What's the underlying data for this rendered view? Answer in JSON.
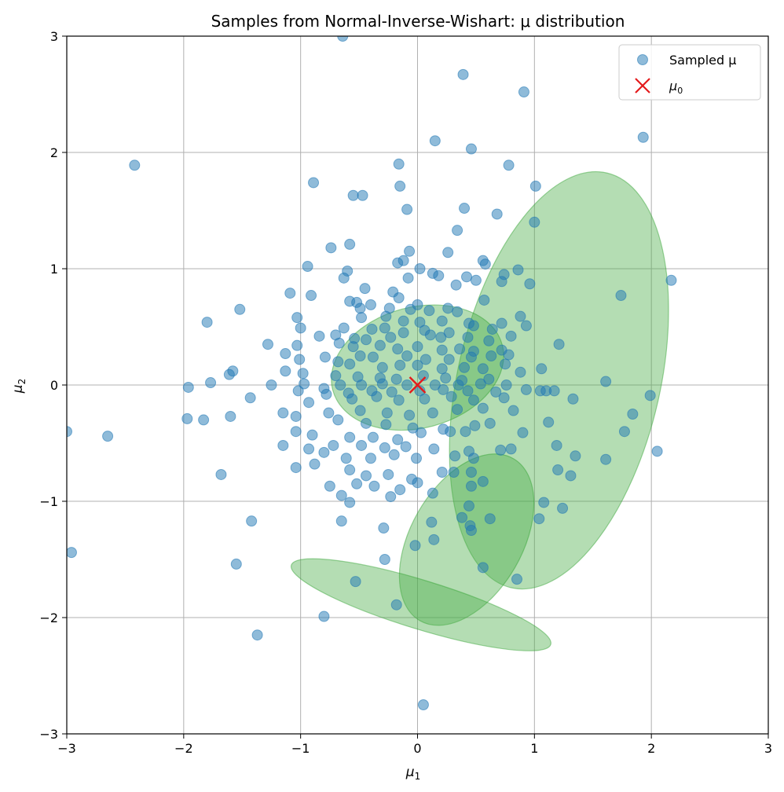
{
  "chart_data": {
    "type": "scatter",
    "title": "Samples from Normal-Inverse-Wishart: μ distribution",
    "xlabel": "μ",
    "xlabel_sub": "1",
    "ylabel": "μ",
    "ylabel_sub": "2",
    "xlim": [
      -3,
      3
    ],
    "ylim": [
      -3,
      3
    ],
    "xticks": [
      -3,
      -2,
      -1,
      0,
      1,
      2,
      3
    ],
    "yticks": [
      -3,
      -2,
      -1,
      0,
      1,
      2,
      3
    ],
    "xtick_labels": [
      "−3",
      "−2",
      "−1",
      "0",
      "1",
      "2",
      "3"
    ],
    "ytick_labels": [
      "−3",
      "−2",
      "−1",
      "0",
      "1",
      "2",
      "3"
    ],
    "grid": true,
    "legend_position": "top-right",
    "colors": {
      "points": "#1f77b4",
      "mu0": "#e41a1c",
      "ellipse_fill": "#4daf4a",
      "ellipse_edge": "#2ca02c",
      "grid": "#b0b0b0"
    },
    "series": [
      {
        "name": "Sampled μ",
        "kind": "scatter",
        "points": [
          [
            -0.64,
            3.0
          ],
          [
            0.39,
            2.67
          ],
          [
            0.91,
            2.52
          ],
          [
            0.15,
            2.1
          ],
          [
            0.46,
            2.03
          ],
          [
            1.93,
            2.13
          ],
          [
            -2.42,
            1.89
          ],
          [
            -0.16,
            1.9
          ],
          [
            0.78,
            1.89
          ],
          [
            -0.89,
            1.74
          ],
          [
            -0.15,
            1.71
          ],
          [
            1.01,
            1.71
          ],
          [
            -0.55,
            1.63
          ],
          [
            -0.47,
            1.63
          ],
          [
            -0.09,
            1.51
          ],
          [
            0.4,
            1.52
          ],
          [
            0.68,
            1.47
          ],
          [
            1.0,
            1.4
          ],
          [
            0.34,
            1.33
          ],
          [
            -0.58,
            1.21
          ],
          [
            -0.74,
            1.18
          ],
          [
            0.26,
            1.14
          ],
          [
            -0.07,
            1.15
          ],
          [
            -0.94,
            1.02
          ],
          [
            -0.17,
            1.05
          ],
          [
            -0.12,
            1.07
          ],
          [
            0.56,
            1.07
          ],
          [
            0.58,
            1.04
          ],
          [
            0.02,
            1.0
          ],
          [
            -0.6,
            0.98
          ],
          [
            0.13,
            0.96
          ],
          [
            0.74,
            0.95
          ],
          [
            0.86,
            0.99
          ],
          [
            -0.63,
            0.92
          ],
          [
            -0.08,
            0.92
          ],
          [
            0.18,
            0.94
          ],
          [
            0.42,
            0.93
          ],
          [
            0.5,
            0.9
          ],
          [
            0.72,
            0.89
          ],
          [
            0.96,
            0.87
          ],
          [
            2.17,
            0.9
          ],
          [
            0.33,
            0.86
          ],
          [
            1.74,
            0.77
          ],
          [
            -1.09,
            0.79
          ],
          [
            -0.91,
            0.77
          ],
          [
            -0.45,
            0.83
          ],
          [
            -0.21,
            0.8
          ],
          [
            -0.16,
            0.75
          ],
          [
            0.57,
            0.73
          ],
          [
            -0.58,
            0.72
          ],
          [
            -0.52,
            0.71
          ],
          [
            -0.4,
            0.69
          ],
          [
            -1.52,
            0.65
          ],
          [
            -0.49,
            0.66
          ],
          [
            -0.24,
            0.66
          ],
          [
            -0.06,
            0.65
          ],
          [
            0.0,
            0.69
          ],
          [
            0.1,
            0.64
          ],
          [
            0.26,
            0.66
          ],
          [
            0.34,
            0.63
          ],
          [
            -1.8,
            0.54
          ],
          [
            -1.03,
            0.58
          ],
          [
            -0.48,
            0.58
          ],
          [
            -0.27,
            0.59
          ],
          [
            -0.12,
            0.55
          ],
          [
            0.02,
            0.54
          ],
          [
            0.21,
            0.55
          ],
          [
            0.44,
            0.53
          ],
          [
            0.48,
            0.51
          ],
          [
            0.72,
            0.53
          ],
          [
            0.88,
            0.59
          ],
          [
            0.93,
            0.51
          ],
          [
            -1.0,
            0.49
          ],
          [
            -0.63,
            0.49
          ],
          [
            -0.39,
            0.48
          ],
          [
            -0.28,
            0.49
          ],
          [
            0.06,
            0.47
          ],
          [
            0.27,
            0.45
          ],
          [
            0.64,
            0.48
          ],
          [
            -0.84,
            0.42
          ],
          [
            -0.7,
            0.43
          ],
          [
            -0.54,
            0.4
          ],
          [
            -0.44,
            0.39
          ],
          [
            -0.23,
            0.41
          ],
          [
            -0.12,
            0.45
          ],
          [
            0.11,
            0.43
          ],
          [
            0.2,
            0.41
          ],
          [
            0.43,
            0.41
          ],
          [
            0.61,
            0.38
          ],
          [
            0.8,
            0.42
          ],
          [
            1.21,
            0.35
          ],
          [
            -1.28,
            0.35
          ],
          [
            -1.03,
            0.34
          ],
          [
            -0.67,
            0.36
          ],
          [
            -0.55,
            0.33
          ],
          [
            -0.32,
            0.34
          ],
          [
            -0.17,
            0.31
          ],
          [
            0.0,
            0.33
          ],
          [
            0.21,
            0.3
          ],
          [
            0.36,
            0.31
          ],
          [
            0.48,
            0.29
          ],
          [
            0.72,
            0.3
          ],
          [
            -1.13,
            0.27
          ],
          [
            -0.79,
            0.24
          ],
          [
            -0.49,
            0.25
          ],
          [
            -0.38,
            0.24
          ],
          [
            -0.09,
            0.25
          ],
          [
            0.07,
            0.22
          ],
          [
            0.27,
            0.22
          ],
          [
            0.46,
            0.24
          ],
          [
            0.63,
            0.25
          ],
          [
            0.78,
            0.26
          ],
          [
            -1.01,
            0.22
          ],
          [
            -0.68,
            0.2
          ],
          [
            -0.58,
            0.18
          ],
          [
            -0.3,
            0.15
          ],
          [
            -0.15,
            0.17
          ],
          [
            0.0,
            0.17
          ],
          [
            0.21,
            0.14
          ],
          [
            0.4,
            0.15
          ],
          [
            0.56,
            0.14
          ],
          [
            0.75,
            0.18
          ],
          [
            0.88,
            0.11
          ],
          [
            -1.58,
            0.12
          ],
          [
            -1.13,
            0.12
          ],
          [
            -0.98,
            0.1
          ],
          [
            -0.7,
            0.08
          ],
          [
            -0.51,
            0.07
          ],
          [
            -0.32,
            0.06
          ],
          [
            -0.18,
            0.05
          ],
          [
            0.05,
            0.08
          ],
          [
            0.24,
            0.06
          ],
          [
            0.38,
            0.04
          ],
          [
            0.61,
            0.05
          ],
          [
            1.06,
            0.14
          ],
          [
            -1.61,
            0.09
          ],
          [
            -1.77,
            0.02
          ],
          [
            -1.25,
            0.0
          ],
          [
            -0.97,
            0.01
          ],
          [
            -0.8,
            -0.03
          ],
          [
            -0.66,
            0.0
          ],
          [
            -0.48,
            0.0
          ],
          [
            -0.3,
            0.01
          ],
          [
            -0.09,
            0.0
          ],
          [
            0.15,
            0.0
          ],
          [
            0.35,
            0.0
          ],
          [
            0.54,
            0.01
          ],
          [
            0.76,
            0.0
          ],
          [
            1.61,
            0.03
          ],
          [
            -1.96,
            -0.02
          ],
          [
            -1.02,
            -0.05
          ],
          [
            -0.78,
            -0.08
          ],
          [
            -0.59,
            -0.07
          ],
          [
            -0.39,
            -0.05
          ],
          [
            -0.22,
            -0.06
          ],
          [
            0.02,
            -0.05
          ],
          [
            0.22,
            -0.04
          ],
          [
            0.43,
            -0.05
          ],
          [
            0.67,
            -0.06
          ],
          [
            0.93,
            -0.04
          ],
          [
            1.05,
            -0.05
          ],
          [
            1.1,
            -0.05
          ],
          [
            1.17,
            -0.05
          ],
          [
            1.99,
            -0.09
          ],
          [
            -1.43,
            -0.11
          ],
          [
            -0.93,
            -0.15
          ],
          [
            -0.56,
            -0.12
          ],
          [
            -0.35,
            -0.1
          ],
          [
            -0.16,
            -0.13
          ],
          [
            0.06,
            -0.12
          ],
          [
            0.29,
            -0.1
          ],
          [
            0.48,
            -0.13
          ],
          [
            0.74,
            -0.11
          ],
          [
            1.33,
            -0.12
          ],
          [
            -1.15,
            -0.24
          ],
          [
            -0.76,
            -0.24
          ],
          [
            -0.49,
            -0.22
          ],
          [
            -0.26,
            -0.24
          ],
          [
            -0.07,
            -0.26
          ],
          [
            0.13,
            -0.24
          ],
          [
            0.34,
            -0.21
          ],
          [
            0.56,
            -0.2
          ],
          [
            0.82,
            -0.22
          ],
          [
            1.84,
            -0.25
          ],
          [
            -1.97,
            -0.29
          ],
          [
            -1.83,
            -0.3
          ],
          [
            -1.6,
            -0.27
          ],
          [
            -1.04,
            -0.27
          ],
          [
            -0.68,
            -0.3
          ],
          [
            -0.44,
            -0.33
          ],
          [
            -0.27,
            -0.34
          ],
          [
            -0.04,
            -0.37
          ],
          [
            0.22,
            -0.38
          ],
          [
            0.49,
            -0.35
          ],
          [
            0.62,
            -0.33
          ],
          [
            1.12,
            -0.32
          ],
          [
            -1.04,
            -0.4
          ],
          [
            -0.9,
            -0.43
          ],
          [
            -0.58,
            -0.45
          ],
          [
            -0.38,
            -0.45
          ],
          [
            -0.17,
            -0.47
          ],
          [
            0.03,
            -0.41
          ],
          [
            0.28,
            -0.4
          ],
          [
            0.41,
            -0.4
          ],
          [
            0.9,
            -0.41
          ],
          [
            1.77,
            -0.4
          ],
          [
            -2.65,
            -0.44
          ],
          [
            -1.15,
            -0.52
          ],
          [
            -0.93,
            -0.55
          ],
          [
            -0.72,
            -0.52
          ],
          [
            -0.48,
            -0.52
          ],
          [
            -0.28,
            -0.54
          ],
          [
            -0.1,
            -0.53
          ],
          [
            0.14,
            -0.55
          ],
          [
            0.44,
            -0.57
          ],
          [
            0.71,
            -0.56
          ],
          [
            0.8,
            -0.55
          ],
          [
            1.19,
            -0.52
          ],
          [
            2.05,
            -0.57
          ],
          [
            -0.8,
            -0.58
          ],
          [
            -0.61,
            -0.63
          ],
          [
            -0.4,
            -0.63
          ],
          [
            -0.2,
            -0.6
          ],
          [
            -0.01,
            -0.63
          ],
          [
            0.32,
            -0.61
          ],
          [
            0.48,
            -0.63
          ],
          [
            1.35,
            -0.61
          ],
          [
            1.61,
            -0.64
          ],
          [
            -1.68,
            -0.77
          ],
          [
            -1.04,
            -0.71
          ],
          [
            -0.88,
            -0.68
          ],
          [
            -0.58,
            -0.73
          ],
          [
            -0.44,
            -0.78
          ],
          [
            -0.25,
            -0.77
          ],
          [
            -0.05,
            -0.81
          ],
          [
            0.21,
            -0.75
          ],
          [
            0.31,
            -0.75
          ],
          [
            0.46,
            -0.75
          ],
          [
            0.56,
            -0.83
          ],
          [
            1.31,
            -0.78
          ],
          [
            -0.75,
            -0.87
          ],
          [
            -0.52,
            -0.85
          ],
          [
            -0.37,
            -0.87
          ],
          [
            -0.15,
            -0.9
          ],
          [
            0.0,
            -0.84
          ],
          [
            1.2,
            -0.73
          ],
          [
            -0.65,
            -0.95
          ],
          [
            -0.23,
            -0.96
          ],
          [
            0.13,
            -0.93
          ],
          [
            0.46,
            -0.87
          ],
          [
            1.08,
            -1.01
          ],
          [
            -0.58,
            -1.01
          ],
          [
            0.44,
            -1.04
          ],
          [
            -0.65,
            -1.17
          ],
          [
            0.12,
            -1.18
          ],
          [
            0.38,
            -1.14
          ],
          [
            0.62,
            -1.15
          ],
          [
            1.04,
            -1.15
          ],
          [
            1.24,
            -1.06
          ],
          [
            -1.42,
            -1.17
          ],
          [
            -0.29,
            -1.23
          ],
          [
            0.45,
            -1.21
          ],
          [
            0.46,
            -1.25
          ],
          [
            0.14,
            -1.33
          ],
          [
            -0.02,
            -1.38
          ],
          [
            -0.28,
            -1.5
          ],
          [
            -1.55,
            -1.54
          ],
          [
            0.56,
            -1.57
          ],
          [
            0.85,
            -1.67
          ],
          [
            -0.53,
            -1.69
          ],
          [
            -0.18,
            -1.89
          ],
          [
            -0.8,
            -1.99
          ],
          [
            -1.37,
            -2.15
          ],
          [
            -2.96,
            -1.44
          ],
          [
            -3.0,
            -0.4
          ],
          [
            0.05,
            -2.75
          ]
        ]
      },
      {
        "name": "μ",
        "name_sub": "0",
        "kind": "marker",
        "points": [
          [
            0,
            0
          ]
        ]
      }
    ],
    "ellipses": [
      {
        "center": [
          1.21,
          0.04
        ],
        "semi_axes": [
          1.82,
          0.87
        ],
        "angle_deg": 77
      },
      {
        "center": [
          0.0,
          0.15
        ],
        "semi_axes": [
          0.75,
          0.52
        ],
        "angle_deg": 15
      },
      {
        "center": [
          0.42,
          -1.33
        ],
        "semi_axes": [
          0.8,
          0.48
        ],
        "angle_deg": 60
      },
      {
        "center": [
          0.03,
          -1.89
        ],
        "semi_axes": [
          1.16,
          0.21
        ],
        "angle_deg": -17
      }
    ]
  }
}
